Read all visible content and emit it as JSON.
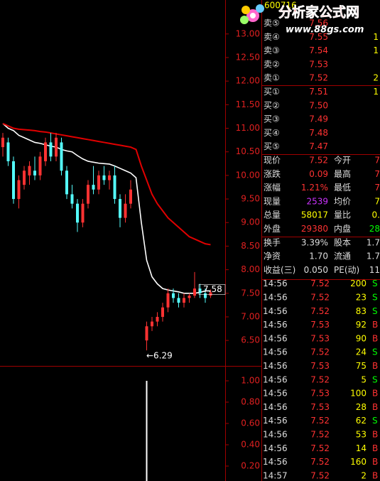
{
  "header": {
    "code": "600716"
  },
  "watermark": {
    "title": "分析家公式网",
    "url": "www.88gs.com"
  },
  "price_chart": {
    "type": "candlestick",
    "ylim": [
      5.96,
      13.72
    ],
    "yticks": [
      {
        "value": 13,
        "label": "13.00"
      },
      {
        "value": 12.5,
        "label": "12.50"
      },
      {
        "value": 12,
        "label": "12.00"
      },
      {
        "value": 11.5,
        "label": "11.50"
      },
      {
        "value": 11,
        "label": "11.00"
      },
      {
        "value": 10.5,
        "label": "10.50"
      },
      {
        "value": 10,
        "label": "10.00"
      },
      {
        "value": 9.5,
        "label": "9.50"
      },
      {
        "value": 9,
        "label": "9.00"
      },
      {
        "value": 8.5,
        "label": "8.50"
      },
      {
        "value": 8,
        "label": "8.00"
      },
      {
        "value": 7.5,
        "label": "7.50"
      },
      {
        "value": 7,
        "label": "7.00"
      },
      {
        "value": 6.5,
        "label": "6.50"
      }
    ],
    "up_color": "#ff3232",
    "down_color": "#54fcfc",
    "candles": [
      {
        "o": 10.6,
        "h": 10.9,
        "l": 10.4,
        "c": 10.8
      },
      {
        "o": 10.7,
        "h": 10.8,
        "l": 10.2,
        "c": 10.3
      },
      {
        "o": 10.3,
        "h": 10.4,
        "l": 9.4,
        "c": 9.5
      },
      {
        "o": 9.5,
        "h": 10.0,
        "l": 9.3,
        "c": 9.9
      },
      {
        "o": 9.8,
        "h": 10.2,
        "l": 9.7,
        "c": 10.1
      },
      {
        "o": 10.0,
        "h": 10.3,
        "l": 9.8,
        "c": 10.2
      },
      {
        "o": 10.1,
        "h": 10.4,
        "l": 9.9,
        "c": 10.0
      },
      {
        "o": 10.0,
        "h": 10.5,
        "l": 9.9,
        "c": 10.4
      },
      {
        "o": 10.3,
        "h": 10.8,
        "l": 10.2,
        "c": 10.7
      },
      {
        "o": 10.7,
        "h": 10.9,
        "l": 10.3,
        "c": 10.4
      },
      {
        "o": 10.4,
        "h": 10.9,
        "l": 10.3,
        "c": 10.8
      },
      {
        "o": 10.7,
        "h": 10.8,
        "l": 10.0,
        "c": 10.1
      },
      {
        "o": 10.1,
        "h": 10.2,
        "l": 9.5,
        "c": 9.6
      },
      {
        "o": 9.6,
        "h": 9.8,
        "l": 9.3,
        "c": 9.4
      },
      {
        "o": 9.4,
        "h": 9.5,
        "l": 8.8,
        "c": 9.0
      },
      {
        "o": 9.0,
        "h": 9.5,
        "l": 8.9,
        "c": 9.4
      },
      {
        "o": 9.4,
        "h": 9.9,
        "l": 9.3,
        "c": 9.8
      },
      {
        "o": 9.8,
        "h": 10.2,
        "l": 9.6,
        "c": 9.7
      },
      {
        "o": 9.7,
        "h": 10.1,
        "l": 9.6,
        "c": 10.0
      },
      {
        "o": 10.0,
        "h": 10.2,
        "l": 9.8,
        "c": 9.9
      },
      {
        "o": 9.9,
        "h": 10.1,
        "l": 9.7,
        "c": 10.0
      },
      {
        "o": 10.0,
        "h": 10.2,
        "l": 9.4,
        "c": 9.5
      },
      {
        "o": 9.5,
        "h": 9.6,
        "l": 8.9,
        "c": 9.1
      },
      {
        "o": 9.1,
        "h": 9.6,
        "l": 9.0,
        "c": 9.4
      },
      {
        "o": 9.4,
        "h": 9.9,
        "l": 9.3,
        "c": 9.7
      },
      null,
      null,
      {
        "o": 6.5,
        "h": 6.9,
        "l": 6.29,
        "c": 6.8
      },
      {
        "o": 6.8,
        "h": 7.0,
        "l": 6.7,
        "c": 6.9
      },
      {
        "o": 6.9,
        "h": 7.1,
        "l": 6.8,
        "c": 7.0
      },
      {
        "o": 7.0,
        "h": 7.3,
        "l": 6.9,
        "c": 7.2
      },
      {
        "o": 7.2,
        "h": 7.6,
        "l": 7.1,
        "c": 7.5
      },
      {
        "o": 7.5,
        "h": 7.6,
        "l": 7.3,
        "c": 7.4
      },
      {
        "o": 7.4,
        "h": 7.5,
        "l": 7.2,
        "c": 7.3
      },
      {
        "o": 7.3,
        "h": 7.5,
        "l": 7.2,
        "c": 7.4
      },
      {
        "o": 7.4,
        "h": 7.5,
        "l": 7.3,
        "c": 7.45
      },
      {
        "o": 7.45,
        "h": 7.95,
        "l": 7.4,
        "c": 7.6
      },
      {
        "o": 7.6,
        "h": 7.7,
        "l": 7.4,
        "c": 7.5
      },
      {
        "o": 7.5,
        "h": 7.6,
        "l": 7.3,
        "c": 7.4
      },
      {
        "o": 7.45,
        "h": 7.58,
        "l": 7.4,
        "c": 7.52
      }
    ],
    "lines": [
      {
        "color": "#ffffff",
        "values": [
          11.1,
          11.0,
          10.95,
          10.85,
          10.8,
          10.75,
          10.7,
          10.68,
          10.65,
          10.62,
          10.6,
          10.55,
          10.52,
          10.5,
          10.42,
          10.35,
          10.3,
          10.28,
          10.26,
          10.25,
          10.24,
          10.2,
          10.15,
          10.1,
          10.05,
          9.95,
          9.0,
          8.2,
          7.85,
          7.7,
          7.6,
          7.57,
          7.55,
          7.53,
          7.5,
          7.5,
          7.5,
          7.52,
          7.55,
          7.55
        ]
      },
      {
        "color": "#e00000",
        "values": [
          11.1,
          11.05,
          11.0,
          10.98,
          10.97,
          10.96,
          10.95,
          10.93,
          10.92,
          10.9,
          10.88,
          10.86,
          10.84,
          10.82,
          10.8,
          10.78,
          10.76,
          10.74,
          10.72,
          10.7,
          10.68,
          10.66,
          10.64,
          10.62,
          10.6,
          10.55,
          10.2,
          9.9,
          9.6,
          9.4,
          9.25,
          9.1,
          9.0,
          8.9,
          8.8,
          8.7,
          8.65,
          8.6,
          8.55,
          8.53
        ]
      }
    ],
    "annotations": [
      {
        "value": 7.58,
        "label": "7.58"
      },
      {
        "value": 6.29,
        "label": "←6.29"
      }
    ]
  },
  "volume_chart": {
    "type": "bar",
    "ylim": [
      0.06,
      1.14
    ],
    "yticks": [
      {
        "value": 1,
        "label": "1.00"
      },
      {
        "value": 0.8,
        "label": "0.80"
      },
      {
        "value": 0.6,
        "label": "0.60"
      },
      {
        "value": 0.4,
        "label": "0.40"
      },
      {
        "value": 0.2,
        "label": "0.20"
      }
    ],
    "color": "#ffffff",
    "values": [
      0.03,
      0.03,
      0.03,
      0.03,
      0.03,
      0.03,
      0.03,
      0.03,
      0.03,
      0.03,
      0.03,
      0.03,
      0.03,
      0.03,
      0.03,
      0.03,
      0.03,
      0.03,
      0.03,
      0.03,
      0.03,
      0.03,
      0.03,
      0.03,
      0.03,
      null,
      null,
      1.0,
      0.03,
      0.03,
      0.03,
      0.03,
      0.03,
      0.03,
      0.03,
      0.03,
      0.03,
      0.03,
      0.03,
      0.03
    ]
  },
  "quote_rows": [
    {
      "cells": [
        "卖⑤",
        "7.56"
      ],
      "colors": [
        "#dddddd",
        "#ff3232"
      ]
    },
    {
      "cells": [
        "卖④",
        "7.55",
        "1"
      ],
      "colors": [
        "#dddddd",
        "#ff3232",
        "#ffff00"
      ]
    },
    {
      "cells": [
        "卖③",
        "7.54",
        "1"
      ],
      "colors": [
        "#dddddd",
        "#ff3232",
        "#ffff00"
      ]
    },
    {
      "cells": [
        "卖②",
        "7.53"
      ],
      "colors": [
        "#dddddd",
        "#ff3232"
      ]
    },
    {
      "cells": [
        "卖①",
        "7.52",
        "2"
      ],
      "colors": [
        "#dddddd",
        "#ff3232",
        "#ffff00"
      ]
    },
    {
      "cells": [
        "买①",
        "7.51",
        "1"
      ],
      "colors": [
        "#dddddd",
        "#ff3232",
        "#ffff00"
      ]
    },
    {
      "cells": [
        "买②",
        "7.50"
      ],
      "colors": [
        "#dddddd",
        "#ff3232"
      ]
    },
    {
      "cells": [
        "买③",
        "7.49"
      ],
      "colors": [
        "#dddddd",
        "#ff3232"
      ]
    },
    {
      "cells": [
        "买④",
        "7.48"
      ],
      "colors": [
        "#dddddd",
        "#ff3232"
      ]
    },
    {
      "cells": [
        "买⑤",
        "7.47"
      ],
      "colors": [
        "#dddddd",
        "#ff3232"
      ]
    },
    {
      "cells": [
        "现价",
        "7.52",
        "今开",
        "7"
      ],
      "colors": [
        "#dddddd",
        "#ff3232",
        "#dddddd",
        "#ff3232"
      ]
    },
    {
      "cells": [
        "涨跌",
        "0.09",
        "最高",
        "7"
      ],
      "colors": [
        "#dddddd",
        "#ff3232",
        "#dddddd",
        "#ff3232"
      ]
    },
    {
      "cells": [
        "涨幅",
        "1.21%",
        "最低",
        "7"
      ],
      "colors": [
        "#dddddd",
        "#ff3232",
        "#dddddd",
        "#ff3232"
      ]
    },
    {
      "cells": [
        "现量",
        "2539",
        "均价",
        "7"
      ],
      "colors": [
        "#dddddd",
        "#cc33ff",
        "#dddddd",
        "#ffff00"
      ]
    },
    {
      "cells": [
        "总量",
        "58017",
        "量比",
        "0."
      ],
      "colors": [
        "#dddddd",
        "#ffff00",
        "#dddddd",
        "#ffff00"
      ]
    },
    {
      "cells": [
        "外盘",
        "29380",
        "内盘",
        "28"
      ],
      "colors": [
        "#dddddd",
        "#ff3232",
        "#dddddd",
        "#00ff00"
      ]
    },
    {
      "cells": [
        "换手",
        "3.39%",
        "股本",
        "1.7"
      ],
      "colors": [
        "#dddddd",
        "#dddddd",
        "#dddddd",
        "#dddddd"
      ]
    },
    {
      "cells": [
        "净资",
        "1.70",
        "流通",
        "1.7"
      ],
      "colors": [
        "#dddddd",
        "#dddddd",
        "#dddddd",
        "#dddddd"
      ]
    },
    {
      "cells": [
        "收益(三)",
        "0.050",
        "PE(动)",
        "11"
      ],
      "colors": [
        "#dddddd",
        "#dddddd",
        "#dddddd",
        "#dddddd"
      ]
    }
  ],
  "trades": {
    "side_colors": {
      "S": "#00ff00",
      "B": "#ff3232"
    },
    "rows": [
      [
        "14:56",
        "7.52",
        "200",
        "S"
      ],
      [
        "14:56",
        "7.52",
        "23",
        "S"
      ],
      [
        "14:56",
        "7.52",
        "83",
        "S"
      ],
      [
        "14:56",
        "7.53",
        "92",
        "B"
      ],
      [
        "14:56",
        "7.53",
        "90",
        "B"
      ],
      [
        "14:56",
        "7.52",
        "24",
        "S"
      ],
      [
        "14:56",
        "7.53",
        "75",
        "B"
      ],
      [
        "14:56",
        "7.52",
        "5",
        "S"
      ],
      [
        "14:56",
        "7.53",
        "100",
        "B"
      ],
      [
        "14:56",
        "7.53",
        "28",
        "B"
      ],
      [
        "14:56",
        "7.52",
        "62",
        "S"
      ],
      [
        "14:56",
        "7.52",
        "53",
        "B"
      ],
      [
        "14:56",
        "7.52",
        "14",
        "B"
      ],
      [
        "14:56",
        "7.52",
        "160",
        "B"
      ],
      [
        "14:57",
        "7.52",
        "2",
        "B"
      ]
    ]
  }
}
